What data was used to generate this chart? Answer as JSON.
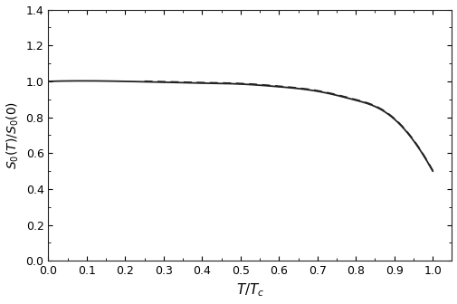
{
  "title": "",
  "xlabel": "T/T_{c}",
  "ylabel": "S_{0}(T)/S_{0}(0)",
  "xlim": [
    0.0,
    1.05
  ],
  "ylim": [
    0.0,
    1.4
  ],
  "xticks": [
    0.0,
    0.1,
    0.2,
    0.3,
    0.4,
    0.5,
    0.6,
    0.7,
    0.8,
    0.9,
    1.0
  ],
  "yticks": [
    0.0,
    0.2,
    0.4,
    0.6,
    0.8,
    1.0,
    1.2,
    1.4
  ],
  "line_color": "#222222",
  "background_color": "#ffffff",
  "n_points": 1000,
  "figsize": [
    5.05,
    3.36
  ],
  "dpi": 100,
  "curve_alpha": 4.0,
  "curve_beta": 0.165,
  "solid_lw": 1.3,
  "dash_lw": 1.3
}
